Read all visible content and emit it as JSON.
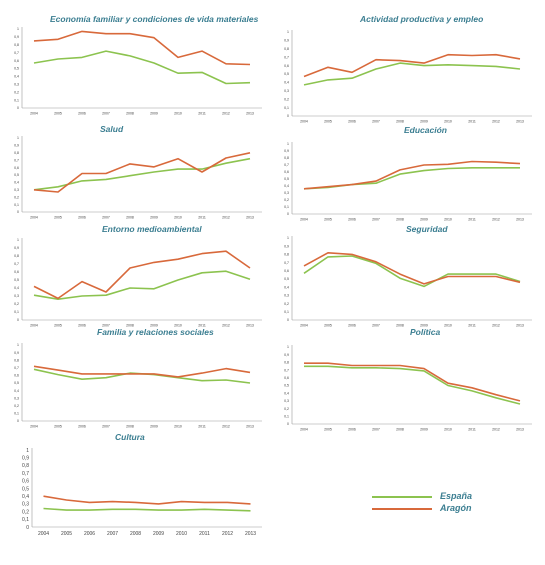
{
  "legend": {
    "espana": "España",
    "aragon": "Aragón"
  },
  "colors": {
    "espana": "#8cc34f",
    "aragon": "#d8693b",
    "axis": "#9a9a9a",
    "tick_text": "#444444"
  },
  "chart_data": [
    {
      "type": "line",
      "title": "Economía familiar y condiciones de vida materiales",
      "categories": [
        "2004",
        "2005",
        "2006",
        "2007",
        "2008",
        "2009",
        "2010",
        "2011",
        "2012",
        "2013"
      ],
      "yticks": [
        "0",
        "0,1",
        "0,2",
        "0,3",
        "0,4",
        "0,5",
        "0,6",
        "0,7",
        "0,8",
        "0,9",
        "1"
      ],
      "ylim": [
        0,
        1
      ],
      "series": [
        {
          "name": "España",
          "values": [
            0.57,
            0.62,
            0.64,
            0.72,
            0.66,
            0.57,
            0.44,
            0.45,
            0.31,
            0.32
          ]
        },
        {
          "name": "Aragón",
          "values": [
            0.85,
            0.87,
            0.97,
            0.94,
            0.94,
            0.89,
            0.64,
            0.72,
            0.56,
            0.55
          ]
        }
      ]
    },
    {
      "type": "line",
      "title": "Actividad productiva y empleo",
      "categories": [
        "2004",
        "2005",
        "2006",
        "2007",
        "2008",
        "2009",
        "2010",
        "2011",
        "2012",
        "2013"
      ],
      "yticks": [
        "0",
        "0,1",
        "0,2",
        "0,3",
        "0,4",
        "0,5",
        "0,6",
        "0,7",
        "0,8",
        "0,9",
        "1"
      ],
      "ylim": [
        0,
        1
      ],
      "series": [
        {
          "name": "España",
          "values": [
            0.37,
            0.43,
            0.45,
            0.56,
            0.63,
            0.6,
            0.61,
            0.6,
            0.59,
            0.56
          ]
        },
        {
          "name": "Aragón",
          "values": [
            0.47,
            0.58,
            0.52,
            0.67,
            0.66,
            0.63,
            0.73,
            0.72,
            0.73,
            0.68
          ]
        }
      ]
    },
    {
      "type": "line",
      "title": "Salud",
      "categories": [
        "2004",
        "2005",
        "2006",
        "2007",
        "2008",
        "2009",
        "2010",
        "2011",
        "2012",
        "2013"
      ],
      "yticks": [
        "0",
        "0,1",
        "0,2",
        "0,3",
        "0,4",
        "0,5",
        "0,6",
        "0,7",
        "0,8",
        "0,9",
        "1"
      ],
      "ylim": [
        0,
        1
      ],
      "series": [
        {
          "name": "España",
          "values": [
            0.3,
            0.34,
            0.42,
            0.44,
            0.49,
            0.54,
            0.58,
            0.58,
            0.66,
            0.72
          ]
        },
        {
          "name": "Aragón",
          "values": [
            0.3,
            0.27,
            0.52,
            0.52,
            0.65,
            0.61,
            0.72,
            0.54,
            0.73,
            0.8
          ]
        }
      ]
    },
    {
      "type": "line",
      "title": "Educación",
      "categories": [
        "2004",
        "2005",
        "2006",
        "2007",
        "2008",
        "2009",
        "2010",
        "2011",
        "2012",
        "2013"
      ],
      "yticks": [
        "0",
        "0,1",
        "0,2",
        "0,3",
        "0,4",
        "0,5",
        "0,6",
        "0,7",
        "0,8",
        "0,9",
        "1"
      ],
      "ylim": [
        0,
        1
      ],
      "series": [
        {
          "name": "España",
          "values": [
            0.36,
            0.38,
            0.42,
            0.44,
            0.57,
            0.62,
            0.65,
            0.66,
            0.66,
            0.66
          ]
        },
        {
          "name": "Aragón",
          "values": [
            0.36,
            0.39,
            0.42,
            0.47,
            0.63,
            0.7,
            0.71,
            0.75,
            0.74,
            0.72
          ]
        }
      ]
    },
    {
      "type": "line",
      "title": "Entorno medioambiental",
      "categories": [
        "2004",
        "2005",
        "2006",
        "2007",
        "2008",
        "2009",
        "2010",
        "2011",
        "2012",
        "2013"
      ],
      "yticks": [
        "0",
        "0,1",
        "0,2",
        "0,3",
        "0,4",
        "0,5",
        "0,6",
        "0,7",
        "0,8",
        "0,9",
        "1"
      ],
      "ylim": [
        0,
        1
      ],
      "series": [
        {
          "name": "España",
          "values": [
            0.31,
            0.26,
            0.3,
            0.31,
            0.4,
            0.39,
            0.5,
            0.59,
            0.61,
            0.51
          ]
        },
        {
          "name": "Aragón",
          "values": [
            0.42,
            0.27,
            0.48,
            0.35,
            0.65,
            0.72,
            0.76,
            0.83,
            0.86,
            0.65
          ]
        }
      ]
    },
    {
      "type": "line",
      "title": "Seguridad",
      "categories": [
        "2004",
        "2005",
        "2006",
        "2007",
        "2008",
        "2009",
        "2010",
        "2011",
        "2012",
        "2013"
      ],
      "yticks": [
        "0",
        "0,1",
        "0,2",
        "0,3",
        "0,4",
        "0,5",
        "0,6",
        "0,7",
        "0,8",
        "0,9",
        "1"
      ],
      "ylim": [
        0,
        1
      ],
      "series": [
        {
          "name": "España",
          "values": [
            0.57,
            0.77,
            0.78,
            0.69,
            0.51,
            0.41,
            0.56,
            0.56,
            0.56,
            0.47
          ]
        },
        {
          "name": "Aragón",
          "values": [
            0.66,
            0.82,
            0.8,
            0.71,
            0.56,
            0.44,
            0.53,
            0.53,
            0.53,
            0.46
          ]
        }
      ]
    },
    {
      "type": "line",
      "title": "Familia y relaciones sociales",
      "categories": [
        "2004",
        "2005",
        "2006",
        "2007",
        "2008",
        "2009",
        "2010",
        "2011",
        "2012",
        "2013"
      ],
      "yticks": [
        "0",
        "0,1",
        "0,2",
        "0,3",
        "0,4",
        "0,5",
        "0,6",
        "0,7",
        "0,8",
        "0,9",
        "1"
      ],
      "ylim": [
        0,
        1
      ],
      "series": [
        {
          "name": "España",
          "values": [
            0.68,
            0.61,
            0.55,
            0.57,
            0.63,
            0.61,
            0.57,
            0.53,
            0.54,
            0.5
          ]
        },
        {
          "name": "Aragón",
          "values": [
            0.72,
            0.67,
            0.62,
            0.62,
            0.62,
            0.62,
            0.58,
            0.63,
            0.69,
            0.64
          ]
        }
      ]
    },
    {
      "type": "line",
      "title": "Política",
      "categories": [
        "2004",
        "2005",
        "2006",
        "2007",
        "2008",
        "2009",
        "2010",
        "2011",
        "2012",
        "2013"
      ],
      "yticks": [
        "0",
        "0,1",
        "0,2",
        "0,3",
        "0,4",
        "0,5",
        "0,6",
        "0,7",
        "0,8",
        "0,9",
        "1"
      ],
      "ylim": [
        0,
        1
      ],
      "series": [
        {
          "name": "España",
          "values": [
            0.75,
            0.75,
            0.73,
            0.73,
            0.72,
            0.69,
            0.5,
            0.43,
            0.34,
            0.26
          ]
        },
        {
          "name": "Aragón",
          "values": [
            0.79,
            0.79,
            0.76,
            0.76,
            0.76,
            0.72,
            0.53,
            0.47,
            0.38,
            0.3
          ]
        }
      ]
    },
    {
      "type": "line",
      "title": "Cultura",
      "categories": [
        "2004",
        "2005",
        "2006",
        "2007",
        "2008",
        "2009",
        "2010",
        "2011",
        "2012",
        "2013"
      ],
      "yticks": [
        "0",
        "0,1",
        "0,2",
        "0,3",
        "0,4",
        "0,5",
        "0,6",
        "0,7",
        "0,8",
        "0,9",
        "1"
      ],
      "ylim": [
        0,
        1
      ],
      "series": [
        {
          "name": "España",
          "values": [
            0.24,
            0.22,
            0.22,
            0.23,
            0.23,
            0.22,
            0.22,
            0.23,
            0.22,
            0.21
          ]
        },
        {
          "name": "Aragón",
          "values": [
            0.4,
            0.35,
            0.32,
            0.33,
            0.32,
            0.3,
            0.33,
            0.32,
            0.32,
            0.3
          ]
        }
      ]
    }
  ]
}
